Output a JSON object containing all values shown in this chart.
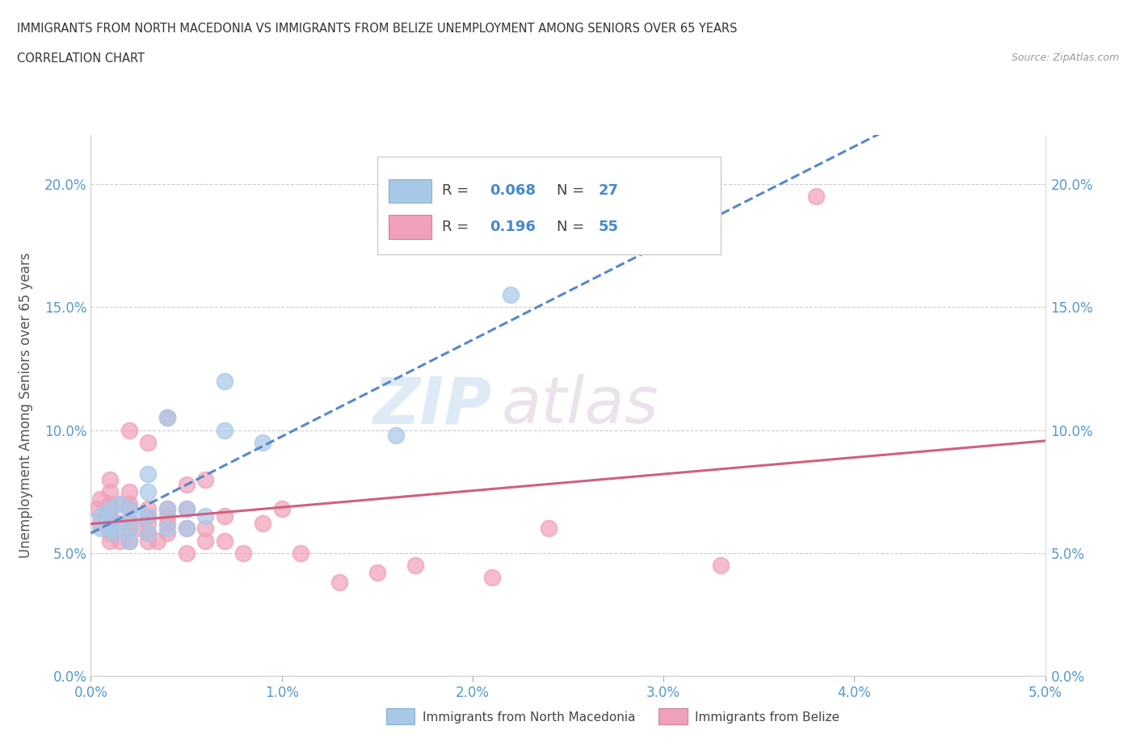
{
  "title_line1": "IMMIGRANTS FROM NORTH MACEDONIA VS IMMIGRANTS FROM BELIZE UNEMPLOYMENT AMONG SENIORS OVER 65 YEARS",
  "title_line2": "CORRELATION CHART",
  "source": "Source: ZipAtlas.com",
  "ylabel": "Unemployment Among Seniors over 65 years",
  "xlim": [
    0.0,
    0.05
  ],
  "ylim": [
    0.0,
    0.22
  ],
  "xticks": [
    0.0,
    0.01,
    0.02,
    0.03,
    0.04,
    0.05
  ],
  "yticks": [
    0.0,
    0.05,
    0.1,
    0.15,
    0.2
  ],
  "ytick_labels": [
    "0.0%",
    "5.0%",
    "10.0%",
    "15.0%",
    "20.0%"
  ],
  "xtick_labels": [
    "0.0%",
    "1.0%",
    "2.0%",
    "3.0%",
    "4.0%",
    "5.0%"
  ],
  "legend_R1": "0.068",
  "legend_N1": "27",
  "legend_R2": "0.196",
  "legend_N2": "55",
  "color_macedonia": "#a8c8e8",
  "color_belize": "#f0a0b8",
  "line_color_macedonia": "#5588cc",
  "line_color_belize": "#d06080",
  "watermark_zip": "ZIP",
  "watermark_atlas": "atlas",
  "north_macedonia_x": [
    0.0005,
    0.0005,
    0.0008,
    0.001,
    0.001,
    0.0012,
    0.0015,
    0.0015,
    0.002,
    0.002,
    0.002,
    0.0025,
    0.003,
    0.003,
    0.003,
    0.003,
    0.004,
    0.004,
    0.004,
    0.005,
    0.005,
    0.006,
    0.007,
    0.007,
    0.009,
    0.016,
    0.022
  ],
  "north_macedonia_y": [
    0.065,
    0.06,
    0.065,
    0.06,
    0.068,
    0.058,
    0.062,
    0.07,
    0.055,
    0.06,
    0.068,
    0.065,
    0.058,
    0.065,
    0.075,
    0.082,
    0.06,
    0.068,
    0.105,
    0.06,
    0.068,
    0.065,
    0.1,
    0.12,
    0.095,
    0.098,
    0.155
  ],
  "belize_x": [
    0.0003,
    0.0005,
    0.0005,
    0.0008,
    0.001,
    0.001,
    0.001,
    0.001,
    0.001,
    0.001,
    0.001,
    0.001,
    0.0015,
    0.0015,
    0.0015,
    0.002,
    0.002,
    0.002,
    0.002,
    0.002,
    0.002,
    0.002,
    0.0025,
    0.003,
    0.003,
    0.003,
    0.003,
    0.003,
    0.003,
    0.0035,
    0.004,
    0.004,
    0.004,
    0.004,
    0.004,
    0.005,
    0.005,
    0.005,
    0.005,
    0.006,
    0.006,
    0.006,
    0.007,
    0.007,
    0.008,
    0.009,
    0.01,
    0.011,
    0.013,
    0.015,
    0.017,
    0.021,
    0.024,
    0.033,
    0.038
  ],
  "belize_y": [
    0.068,
    0.062,
    0.072,
    0.065,
    0.055,
    0.058,
    0.062,
    0.065,
    0.068,
    0.07,
    0.075,
    0.08,
    0.055,
    0.062,
    0.07,
    0.055,
    0.06,
    0.063,
    0.068,
    0.07,
    0.075,
    0.1,
    0.06,
    0.055,
    0.058,
    0.062,
    0.065,
    0.068,
    0.095,
    0.055,
    0.058,
    0.062,
    0.065,
    0.068,
    0.105,
    0.05,
    0.06,
    0.068,
    0.078,
    0.055,
    0.06,
    0.08,
    0.055,
    0.065,
    0.05,
    0.062,
    0.068,
    0.05,
    0.038,
    0.042,
    0.045,
    0.04,
    0.06,
    0.045,
    0.195
  ]
}
